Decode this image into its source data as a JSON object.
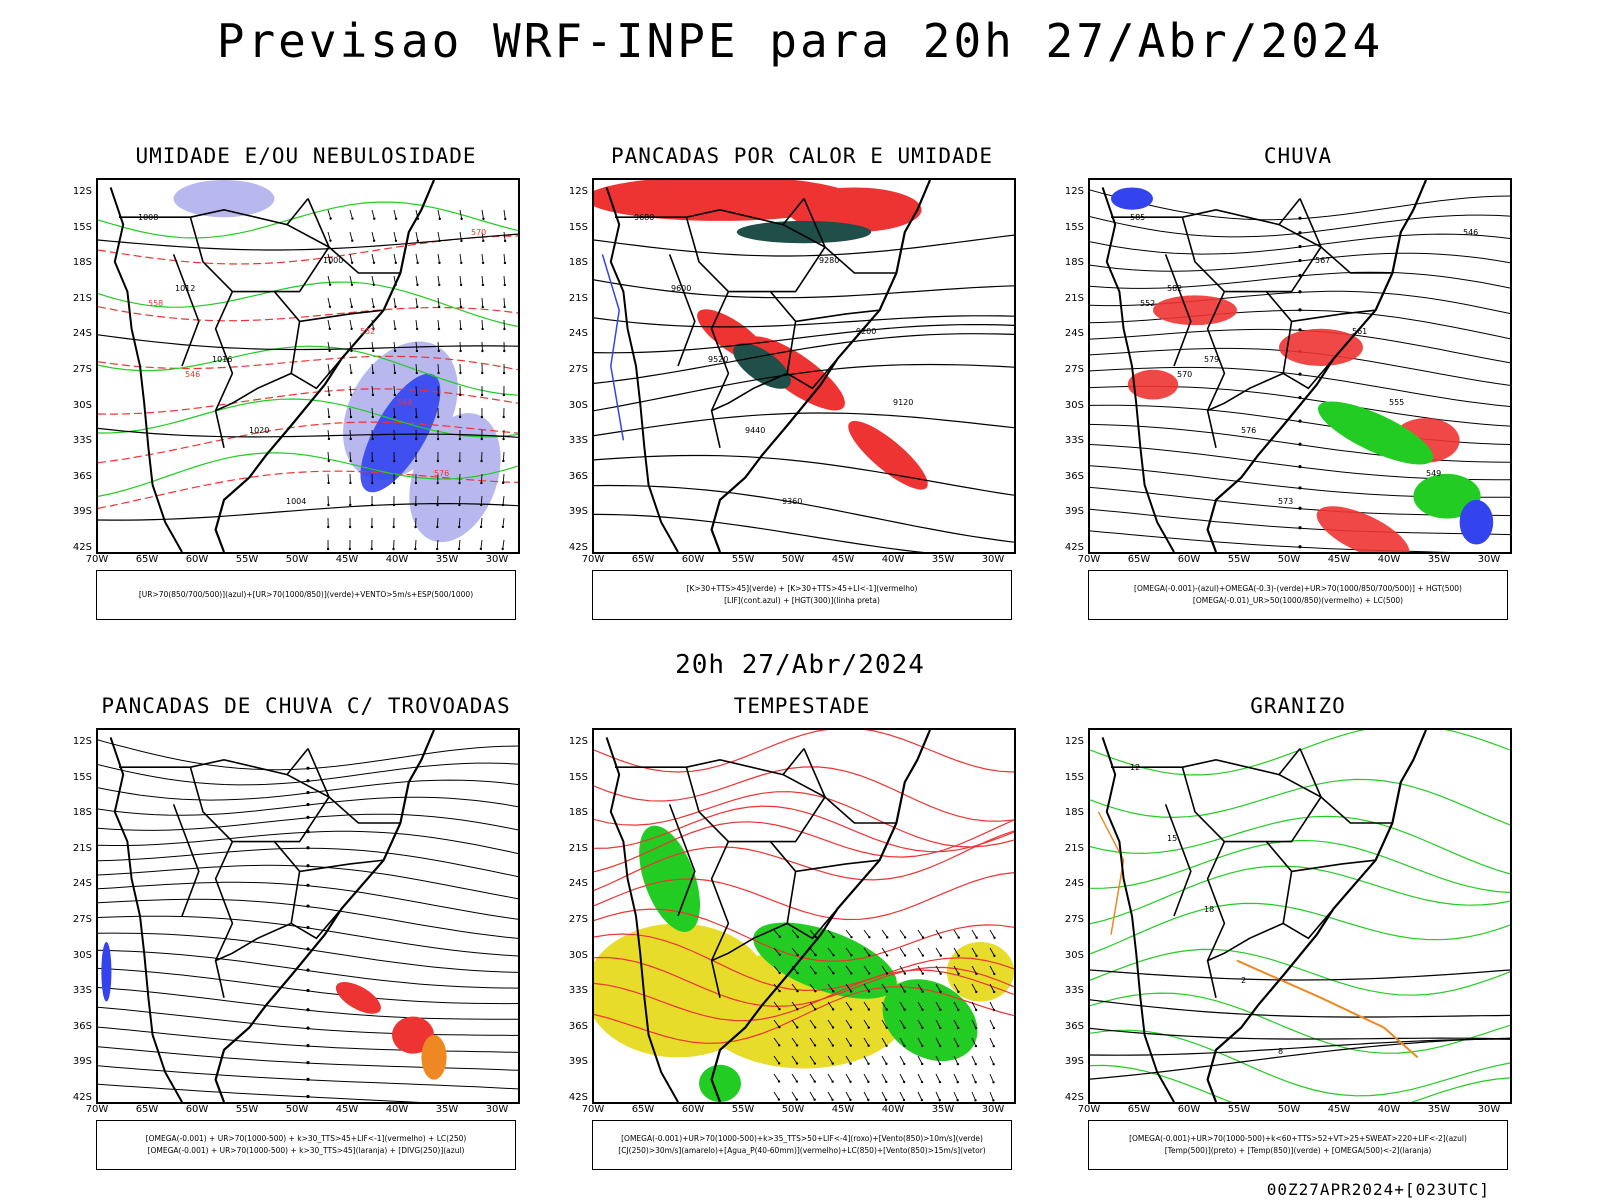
{
  "title": "Previsao WRF-INPE  para 20h 27/Abr/2024",
  "subtitle": "20h 27/Abr/2024",
  "footer": "00Z27APR2024+[023UTC]",
  "axes": {
    "lat_labels": [
      "12S",
      "15S",
      "18S",
      "21S",
      "24S",
      "27S",
      "30S",
      "33S",
      "36S",
      "39S",
      "42S"
    ],
    "lon_labels": [
      "70W",
      "65W",
      "60W",
      "55W",
      "50W",
      "45W",
      "40W",
      "35W",
      "30W"
    ]
  },
  "panels": [
    {
      "title": "UMIDADE E/OU NEBULOSIDADE",
      "legend": [
        "[UR>70(850/700/500)](azul)+[UR>70(1000/850)](verde)+VENTO>5m/s+ESP(500/1000)"
      ],
      "contour_labels": [
        "1008",
        "1012",
        "1016",
        "1020",
        "1004",
        "1000",
        "552",
        "564",
        "576",
        "570",
        "558",
        "546"
      ]
    },
    {
      "title": "PANCADAS POR CALOR E UMIDADE",
      "legend": [
        "[K>30+TTS>45](verde) + [K>30+TTS>45+LI<-1](vermelho)",
        "[LIF](cont.azul) + [HGT(300)](linha preta)"
      ],
      "contour_labels": [
        "9680",
        "9600",
        "9520",
        "9440",
        "9360",
        "9280",
        "9200",
        "9120"
      ]
    },
    {
      "title": "CHUVA",
      "legend": [
        "[OMEGA(-0.001)-(azul)+OMEGA(-0.3)-(verde)+UR>70(1000/850/700/500)] + HGT(500)",
        "[OMEGA(-0.01)_UR>50(1000/850)(vermelho) + LC(500)"
      ],
      "contour_labels": [
        "585",
        "582",
        "579",
        "576",
        "573",
        "567",
        "561",
        "555",
        "549",
        "546",
        "552",
        "570"
      ]
    },
    {
      "title": "PANCADAS DE CHUVA C/ TROVOADAS",
      "legend": [
        "[OMEGA(-0.001) + UR>70(1000-500) + k>30_TTS>45+LIF<-1](vermelho) + LC(250)",
        "[OMEGA(-0.001) + UR>70(1000-500) + k>30_TTS>45](laranja) + [DIVG(250)](azul)"
      ],
      "contour_labels": []
    },
    {
      "title": "TEMPESTADE",
      "legend": [
        "[OMEGA(-0.001)+UR>70(1000-500)+k>35_TTS>50+LIF<-4](roxo)+[Vento(850)>10m/s](verde)",
        "[CJ(250)>30m/s](amarelo)+[Agua_P(40-60mm)](vermelho)+LC(850)+[Vento(850)>15m/s](vetor)"
      ],
      "contour_labels": []
    },
    {
      "title": "GRANIZO",
      "legend": [
        "[OMEGA(-0.001)+UR>70(1000-500)+k<60+TTS>52+VT>25+SWEAT>220+LIF<-2](azul)",
        "[Temp(500)](preto) + [Temp(850)](verde) + [OMEGA(500)<-2](laranja)"
      ],
      "contour_labels": [
        "12",
        "15",
        "18",
        "2",
        "8"
      ]
    }
  ],
  "colors": {
    "red": "#ee3333",
    "green": "#22cc22",
    "blue": "#3344ee",
    "lightblue": "#b8b8ee",
    "darkteal": "#1f4f48",
    "yellow": "#e8dc2a",
    "orange": "#ee8822",
    "black": "#000000"
  }
}
